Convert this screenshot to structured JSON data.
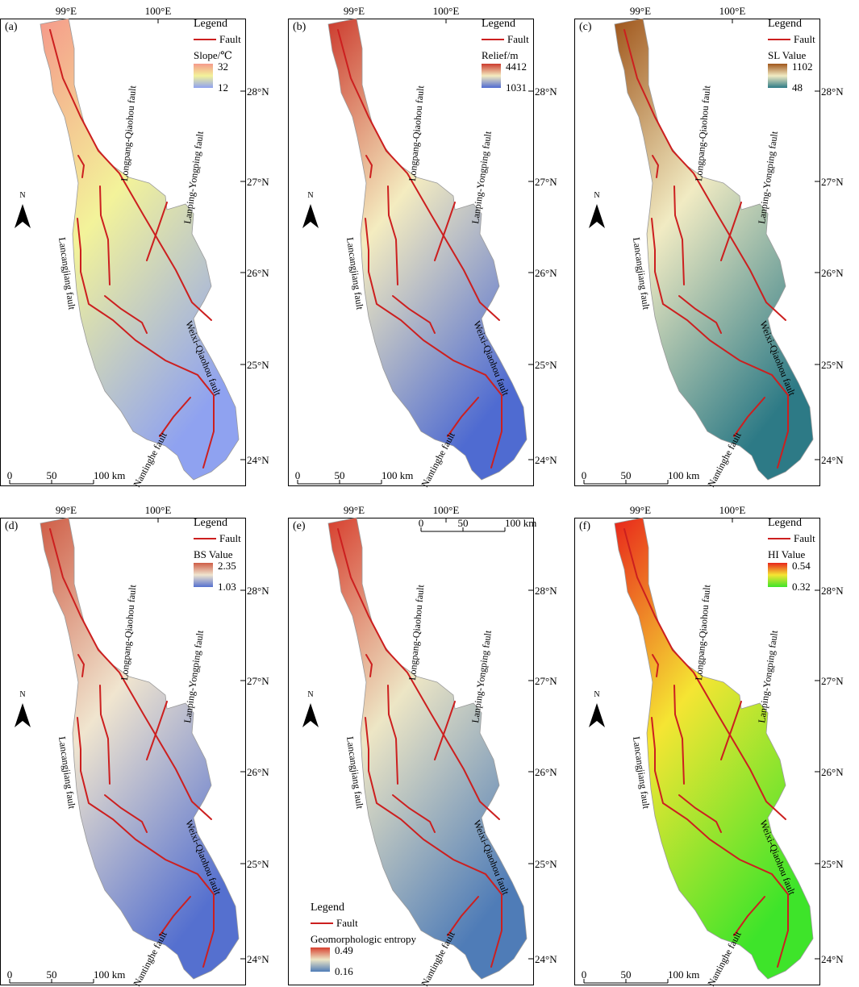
{
  "common": {
    "lon_labels": [
      "99°E",
      "100°E"
    ],
    "lat_labels": [
      "28°N",
      "27°N",
      "26°N",
      "25°N",
      "24°N"
    ],
    "legend_title": "Legend",
    "fault_label": "Fault",
    "north_label": "N",
    "scale_ticks": [
      "0",
      "50",
      "100 km"
    ],
    "fault_color": "#cc1f1f",
    "faults": {
      "longpang": "Longpang-Qiaohou fault",
      "lanping": "Lanping-Yongping fault",
      "lancang": "Lancangjiang fault",
      "weixi": "Weixi-Qiaohou fault",
      "nantinghe": "Nantinghe fault"
    }
  },
  "panels": [
    {
      "id": "a",
      "label": "(a)",
      "index_title": "Slope/℃",
      "index_max": "32",
      "index_min": "12",
      "colors": {
        "high": "#f59a8a",
        "mid": "#f3f39a",
        "low": "#8fa2f0"
      }
    },
    {
      "id": "b",
      "label": "(b)",
      "index_title": "Relief/m",
      "index_max": "4412",
      "index_min": "1031",
      "colors": {
        "high": "#cc3b2e",
        "mid": "#f4ecc0",
        "low": "#4f6bd1"
      }
    },
    {
      "id": "c",
      "label": "(c)",
      "index_title": "SL Value",
      "index_max": "1102",
      "index_min": "48",
      "colors": {
        "high": "#a0561b",
        "mid": "#f1ebc3",
        "low": "#2d7a86"
      }
    },
    {
      "id": "d",
      "label": "(d)",
      "index_title": "BS Value",
      "index_max": "2.35",
      "index_min": "1.03",
      "colors": {
        "high": "#cf5d46",
        "mid": "#f0e5cf",
        "low": "#5570cf"
      }
    },
    {
      "id": "e",
      "label": "(e)",
      "index_title": "Geomorphologic entropy",
      "index_max": "0.49",
      "index_min": "0.16",
      "colors": {
        "high": "#d7402f",
        "mid": "#ede6c5",
        "low": "#4f7cb7"
      }
    },
    {
      "id": "f",
      "label": "(f)",
      "index_title": "HI Value",
      "index_max": "0.54",
      "index_min": "0.32",
      "colors": {
        "high": "#e8261b",
        "mid": "#f5e533",
        "low": "#3ee42a"
      }
    }
  ]
}
